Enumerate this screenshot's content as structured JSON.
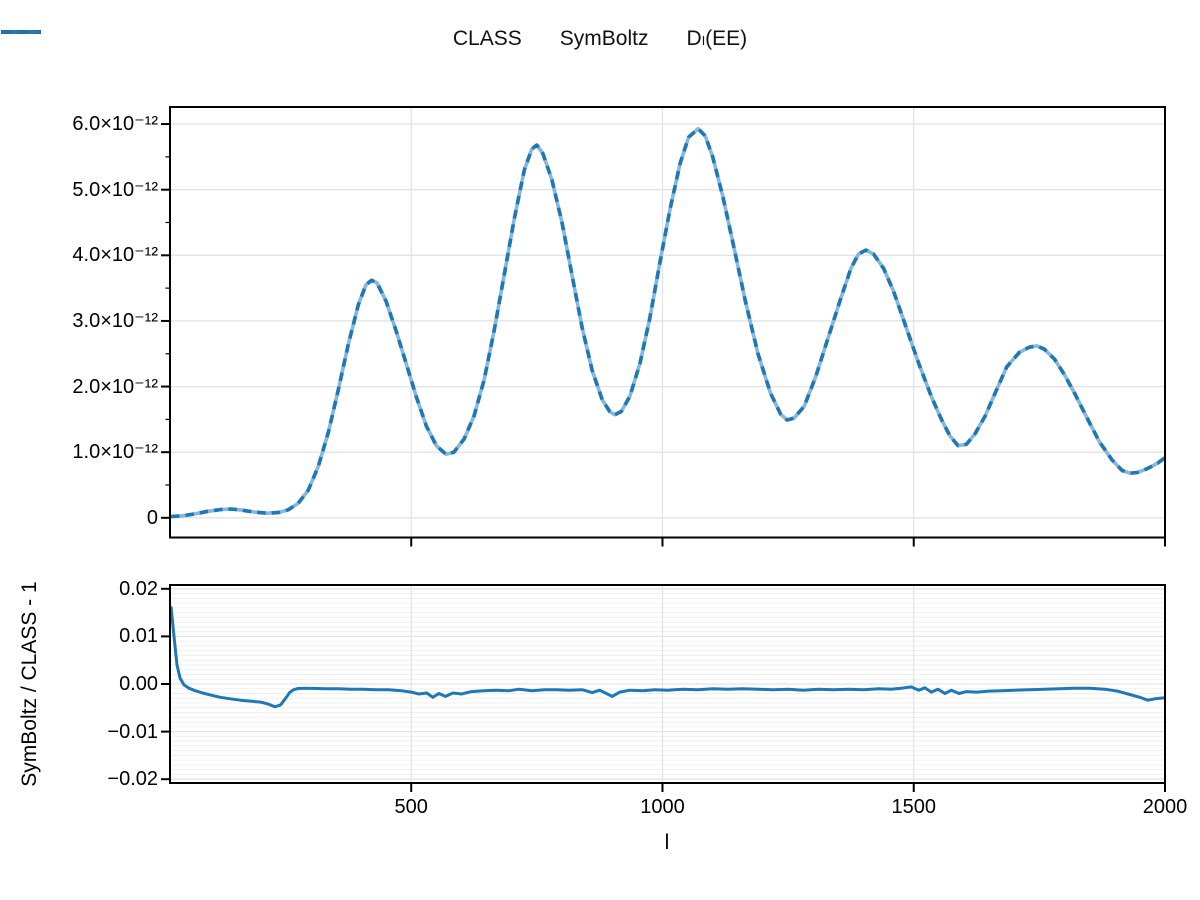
{
  "legend": {
    "items": [
      {
        "label": "CLASS",
        "style": "solid",
        "color": "#000000"
      },
      {
        "label": "SymBoltz",
        "style": "dashed",
        "color": "#000000"
      },
      {
        "label": "Dₗ(EE)",
        "style": "solid",
        "color": "#1f77b4"
      }
    ]
  },
  "colors": {
    "spectrum_line": "#1f77b4",
    "spectrum_underlay": "#85b8da",
    "residual_line": "#1f77b4",
    "grid_major": "#e3e3e3",
    "grid_minor": "#f0f0f0",
    "axis": "#000000"
  },
  "chart_data": [
    {
      "type": "line",
      "panel": "spectrum",
      "title": "",
      "xlabel": "",
      "ylabel": "",
      "xlim": [
        20,
        2000
      ],
      "ylim_e12": [
        -0.3,
        6.26
      ],
      "x_ticks": [
        500,
        1000,
        1500,
        2000
      ],
      "y_ticks_e12": [
        0,
        1,
        2,
        3,
        4,
        5,
        6
      ],
      "y_tick_labels": [
        "0",
        "1.0×10⁻¹²",
        "2.0×10⁻¹²",
        "3.0×10⁻¹²",
        "4.0×10⁻¹²",
        "5.0×10⁻¹²",
        "6.0×10⁻¹²"
      ],
      "y_minor_step_e12": 0.5,
      "grid": "major",
      "y_unit": "1e-12",
      "series": [
        {
          "name": "CLASS",
          "style": "solid",
          "color": "#1f77b4",
          "alpha": 0.5
        },
        {
          "name": "SymBoltz",
          "style": "dashed",
          "color": "#1f77b4",
          "alpha": 1.0
        }
      ],
      "note": "CLASS and SymBoltz curves coincide; points in units of 1e-12",
      "points_e12": [
        [
          22,
          0.02
        ],
        [
          45,
          0.03
        ],
        [
          70,
          0.06
        ],
        [
          95,
          0.1
        ],
        [
          120,
          0.125
        ],
        [
          141,
          0.135
        ],
        [
          160,
          0.12
        ],
        [
          185,
          0.09
        ],
        [
          213,
          0.07
        ],
        [
          235,
          0.08
        ],
        [
          255,
          0.12
        ],
        [
          275,
          0.22
        ],
        [
          295,
          0.42
        ],
        [
          315,
          0.78
        ],
        [
          335,
          1.3
        ],
        [
          355,
          1.95
        ],
        [
          375,
          2.65
        ],
        [
          395,
          3.25
        ],
        [
          410,
          3.55
        ],
        [
          421,
          3.62
        ],
        [
          432,
          3.58
        ],
        [
          450,
          3.3
        ],
        [
          470,
          2.85
        ],
        [
          490,
          2.35
        ],
        [
          510,
          1.85
        ],
        [
          530,
          1.4
        ],
        [
          550,
          1.1
        ],
        [
          569,
          0.97
        ],
        [
          585,
          1.0
        ],
        [
          605,
          1.2
        ],
        [
          625,
          1.55
        ],
        [
          645,
          2.1
        ],
        [
          665,
          2.85
        ],
        [
          685,
          3.7
        ],
        [
          705,
          4.55
        ],
        [
          725,
          5.3
        ],
        [
          740,
          5.62
        ],
        [
          750,
          5.68
        ],
        [
          762,
          5.55
        ],
        [
          780,
          5.15
        ],
        [
          800,
          4.5
        ],
        [
          820,
          3.7
        ],
        [
          840,
          2.9
        ],
        [
          860,
          2.25
        ],
        [
          880,
          1.8
        ],
        [
          895,
          1.62
        ],
        [
          905,
          1.57
        ],
        [
          918,
          1.62
        ],
        [
          935,
          1.85
        ],
        [
          955,
          2.35
        ],
        [
          975,
          3.05
        ],
        [
          995,
          3.9
        ],
        [
          1015,
          4.7
        ],
        [
          1035,
          5.4
        ],
        [
          1052,
          5.8
        ],
        [
          1071,
          5.93
        ],
        [
          1085,
          5.82
        ],
        [
          1100,
          5.5
        ],
        [
          1120,
          4.9
        ],
        [
          1140,
          4.2
        ],
        [
          1165,
          3.3
        ],
        [
          1190,
          2.5
        ],
        [
          1215,
          1.9
        ],
        [
          1235,
          1.58
        ],
        [
          1248,
          1.49
        ],
        [
          1262,
          1.52
        ],
        [
          1282,
          1.7
        ],
        [
          1305,
          2.15
        ],
        [
          1330,
          2.75
        ],
        [
          1355,
          3.35
        ],
        [
          1375,
          3.8
        ],
        [
          1390,
          4.02
        ],
        [
          1405,
          4.08
        ],
        [
          1420,
          4.02
        ],
        [
          1440,
          3.8
        ],
        [
          1460,
          3.45
        ],
        [
          1485,
          2.9
        ],
        [
          1510,
          2.35
        ],
        [
          1535,
          1.85
        ],
        [
          1555,
          1.5
        ],
        [
          1572,
          1.25
        ],
        [
          1588,
          1.1
        ],
        [
          1605,
          1.12
        ],
        [
          1622,
          1.28
        ],
        [
          1642,
          1.55
        ],
        [
          1662,
          1.9
        ],
        [
          1685,
          2.3
        ],
        [
          1710,
          2.52
        ],
        [
          1730,
          2.6
        ],
        [
          1745,
          2.62
        ],
        [
          1760,
          2.57
        ],
        [
          1780,
          2.42
        ],
        [
          1800,
          2.18
        ],
        [
          1820,
          1.9
        ],
        [
          1845,
          1.52
        ],
        [
          1870,
          1.15
        ],
        [
          1895,
          0.88
        ],
        [
          1915,
          0.72
        ],
        [
          1930,
          0.68
        ],
        [
          1945,
          0.69
        ],
        [
          1965,
          0.75
        ],
        [
          1985,
          0.83
        ],
        [
          2000,
          0.92
        ]
      ]
    },
    {
      "type": "line",
      "panel": "residual",
      "title": "",
      "xlabel": "l",
      "ylabel": "SymBoltz / CLASS - 1",
      "xlim": [
        20,
        2000
      ],
      "ylim": [
        -0.0208,
        0.0208
      ],
      "x_ticks": [
        500,
        1000,
        1500,
        2000
      ],
      "x_tick_labels": [
        "500",
        "1000",
        "1500",
        "2000"
      ],
      "y_ticks": [
        -0.02,
        -0.01,
        0,
        0.01,
        0.02
      ],
      "y_tick_labels": [
        "−0.02",
        "−0.01",
        "0.00",
        "0.01",
        "0.02"
      ],
      "minor_grid_step": 0.001,
      "grid": "major+minor",
      "series": [
        {
          "name": "SymBoltz / CLASS - 1",
          "style": "solid",
          "color": "#1f77b4"
        }
      ],
      "points": [
        [
          22,
          0.0163
        ],
        [
          28,
          0.01
        ],
        [
          34,
          0.004
        ],
        [
          40,
          0.0012
        ],
        [
          48,
          -0.0002
        ],
        [
          58,
          -0.0009
        ],
        [
          70,
          -0.0014
        ],
        [
          85,
          -0.0019
        ],
        [
          100,
          -0.0023
        ],
        [
          120,
          -0.0028
        ],
        [
          140,
          -0.0031
        ],
        [
          160,
          -0.0034
        ],
        [
          180,
          -0.0036
        ],
        [
          200,
          -0.0038
        ],
        [
          215,
          -0.0042
        ],
        [
          229,
          -0.0048
        ],
        [
          240,
          -0.0044
        ],
        [
          250,
          -0.003
        ],
        [
          258,
          -0.0018
        ],
        [
          266,
          -0.0012
        ],
        [
          275,
          -0.00095
        ],
        [
          290,
          -0.0009
        ],
        [
          310,
          -0.00095
        ],
        [
          330,
          -0.001
        ],
        [
          355,
          -0.001
        ],
        [
          380,
          -0.0011
        ],
        [
          405,
          -0.0011
        ],
        [
          430,
          -0.0012
        ],
        [
          455,
          -0.0012
        ],
        [
          480,
          -0.0014
        ],
        [
          500,
          -0.0017
        ],
        [
          515,
          -0.0021
        ],
        [
          531,
          -0.0019
        ],
        [
          543,
          -0.0028
        ],
        [
          555,
          -0.002
        ],
        [
          568,
          -0.0026
        ],
        [
          583,
          -0.0019
        ],
        [
          600,
          -0.0021
        ],
        [
          620,
          -0.0016
        ],
        [
          645,
          -0.0014
        ],
        [
          670,
          -0.0013
        ],
        [
          695,
          -0.0014
        ],
        [
          715,
          -0.0011
        ],
        [
          740,
          -0.0014
        ],
        [
          765,
          -0.0012
        ],
        [
          790,
          -0.0012
        ],
        [
          815,
          -0.0013
        ],
        [
          840,
          -0.0012
        ],
        [
          860,
          -0.0018
        ],
        [
          875,
          -0.0013
        ],
        [
          900,
          -0.0026
        ],
        [
          915,
          -0.0017
        ],
        [
          935,
          -0.0013
        ],
        [
          960,
          -0.0014
        ],
        [
          985,
          -0.0012
        ],
        [
          1010,
          -0.0013
        ],
        [
          1040,
          -0.0011
        ],
        [
          1070,
          -0.0012
        ],
        [
          1100,
          -0.001
        ],
        [
          1130,
          -0.0011
        ],
        [
          1160,
          -0.001
        ],
        [
          1190,
          -0.0011
        ],
        [
          1220,
          -0.0012
        ],
        [
          1250,
          -0.0011
        ],
        [
          1280,
          -0.0013
        ],
        [
          1310,
          -0.0011
        ],
        [
          1340,
          -0.0012
        ],
        [
          1370,
          -0.0011
        ],
        [
          1400,
          -0.0012
        ],
        [
          1430,
          -0.001
        ],
        [
          1455,
          -0.0011
        ],
        [
          1475,
          -0.0009
        ],
        [
          1495,
          -0.0006
        ],
        [
          1510,
          -0.0013
        ],
        [
          1522,
          -0.0008
        ],
        [
          1535,
          -0.0017
        ],
        [
          1548,
          -0.0011
        ],
        [
          1562,
          -0.002
        ],
        [
          1575,
          -0.0013
        ],
        [
          1590,
          -0.002
        ],
        [
          1605,
          -0.0016
        ],
        [
          1625,
          -0.0017
        ],
        [
          1650,
          -0.0015
        ],
        [
          1675,
          -0.0014
        ],
        [
          1700,
          -0.0013
        ],
        [
          1730,
          -0.0012
        ],
        [
          1760,
          -0.0011
        ],
        [
          1790,
          -0.001
        ],
        [
          1820,
          -0.0009
        ],
        [
          1850,
          -0.0009
        ],
        [
          1880,
          -0.0011
        ],
        [
          1905,
          -0.0015
        ],
        [
          1930,
          -0.0022
        ],
        [
          1950,
          -0.0028
        ],
        [
          1966,
          -0.0034
        ],
        [
          1980,
          -0.0031
        ],
        [
          2000,
          -0.0029
        ]
      ]
    }
  ]
}
